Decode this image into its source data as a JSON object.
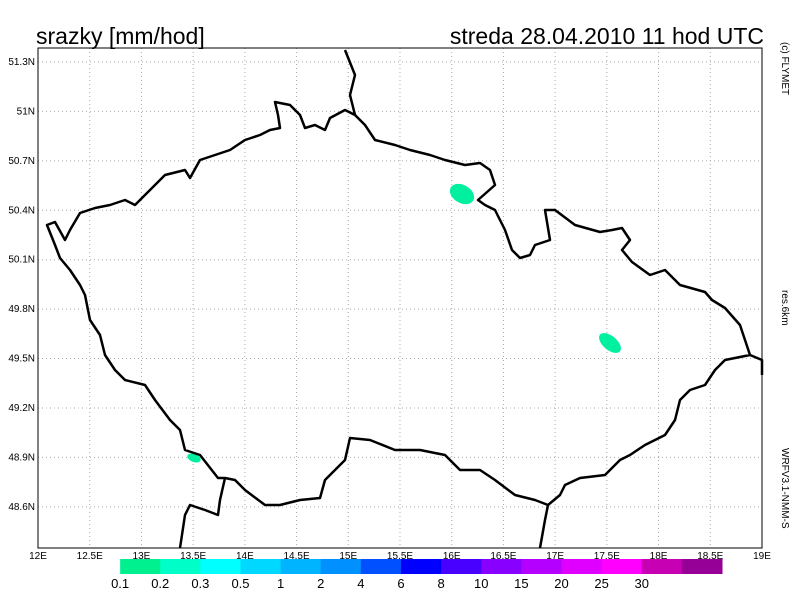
{
  "map": {
    "title_left": "srazky [mm/hod]",
    "title_right": "streda 28.04.2010 11 hod UTC",
    "credit": "(c) FLYMET",
    "resolution": "res.6km",
    "model": "WRFV3.1-NMM-S",
    "xlim": [
      12,
      19
    ],
    "ylim": [
      48.35,
      51.385
    ],
    "grid": true,
    "xticks": [
      {
        "value": 12,
        "label": "12E"
      },
      {
        "value": 12.5,
        "label": "12.5E"
      },
      {
        "value": 13,
        "label": "13E"
      },
      {
        "value": 13.5,
        "label": "13.5E"
      },
      {
        "value": 14,
        "label": "14E"
      },
      {
        "value": 14.5,
        "label": "14.5E"
      },
      {
        "value": 15,
        "label": "15E"
      },
      {
        "value": 15.5,
        "label": "15.5E"
      },
      {
        "value": 16,
        "label": "16E"
      },
      {
        "value": 16.5,
        "label": "16.5E"
      },
      {
        "value": 17,
        "label": "17E"
      },
      {
        "value": 17.5,
        "label": "17.5E"
      },
      {
        "value": 18,
        "label": "18E"
      },
      {
        "value": 18.5,
        "label": "18.5E"
      },
      {
        "value": 19,
        "label": "19E"
      }
    ],
    "yticks": [
      {
        "value": 48.6,
        "label": "48.6N"
      },
      {
        "value": 48.9,
        "label": "48.9N"
      },
      {
        "value": 49.2,
        "label": "49.2N"
      },
      {
        "value": 49.5,
        "label": "49.5N"
      },
      {
        "value": 49.8,
        "label": "49.8N"
      },
      {
        "value": 50.1,
        "label": "50.1N"
      },
      {
        "value": 50.4,
        "label": "50.4N"
      },
      {
        "value": 50.7,
        "label": "50.7N"
      },
      {
        "value": 51,
        "label": "51N"
      },
      {
        "value": 51.3,
        "label": "51.3N"
      }
    ],
    "colorbar": {
      "levels": [
        0.1,
        0.2,
        0.3,
        0.5,
        1,
        2,
        4,
        6,
        8,
        10,
        15,
        20,
        25,
        30
      ],
      "colors": [
        "#ffffff",
        "#00f090",
        "#00ffc8",
        "#00ffff",
        "#00d8ff",
        "#00b4ff",
        "#0090ff",
        "#0050ff",
        "#0000ff",
        "#4800ff",
        "#8800ff",
        "#b400ff",
        "#e000ff",
        "#ff00ff",
        "#c800b4",
        "#960096"
      ]
    }
  }
}
